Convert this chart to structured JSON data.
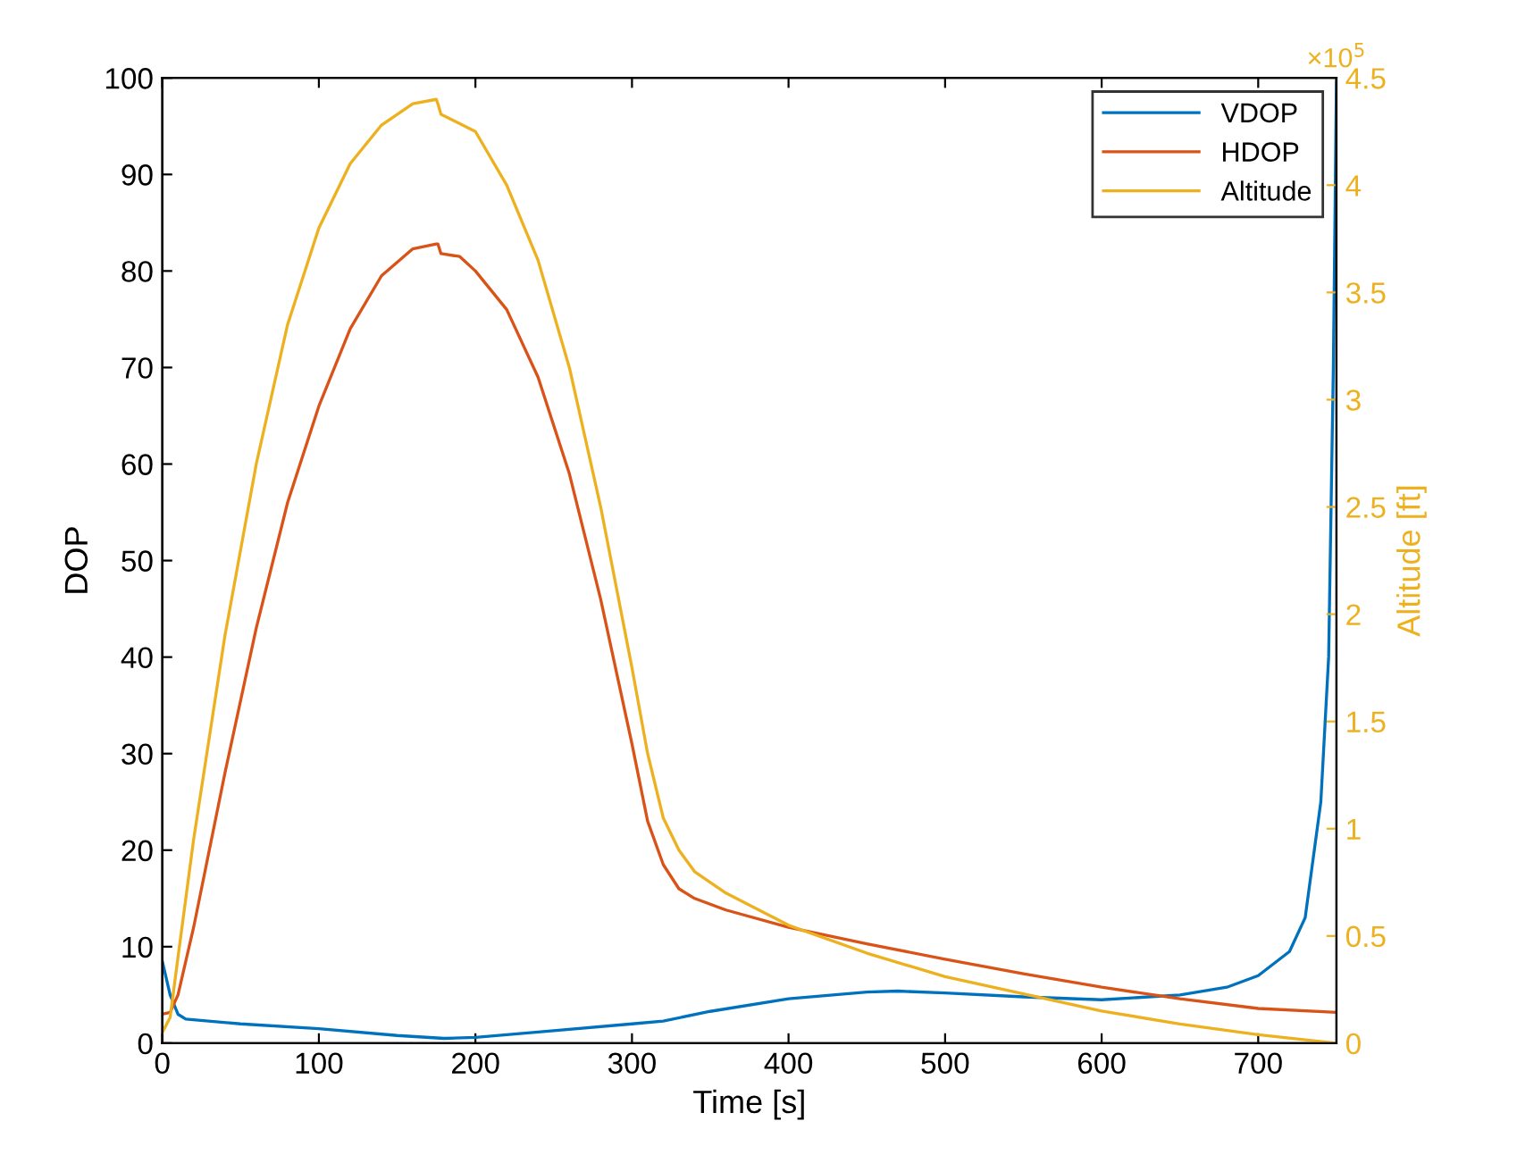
{
  "chart_data": {
    "type": "line",
    "xlabel": "Time [s]",
    "ylabel": "DOP",
    "y2label": "Altitude [ft]",
    "legend": "top right",
    "grid": false,
    "xlim": [
      0,
      750
    ],
    "xticks": [
      0,
      100,
      200,
      300,
      400,
      500,
      600,
      700
    ],
    "ylim": [
      0,
      100
    ],
    "yticks": [
      0,
      10,
      20,
      30,
      40,
      50,
      60,
      70,
      80,
      90,
      100
    ],
    "y2lim": [
      0,
      4.5
    ],
    "y2ticks": [
      0,
      0.5,
      1,
      1.5,
      2,
      2.5,
      3,
      3.5,
      4,
      4.5
    ],
    "annotations": [
      "×10$^{5}$"
    ],
    "series": [
      {
        "name": "VDOP",
        "color": "#0072bd",
        "x": [
          0,
          5,
          10,
          15,
          50,
          100,
          150,
          180,
          200,
          250,
          300,
          320,
          350,
          400,
          450,
          470,
          500,
          550,
          600,
          650,
          680,
          700,
          720,
          730,
          740,
          745,
          748,
          750
        ],
        "values": [
          8.5,
          5,
          3,
          2.5,
          2,
          1.5,
          0.8,
          0.5,
          0.6,
          1.3,
          2,
          2.3,
          3.3,
          4.6,
          5.3,
          5.4,
          5.2,
          4.8,
          4.5,
          5,
          5.8,
          7,
          9.5,
          13,
          25,
          40,
          70,
          100
        ]
      },
      {
        "name": "HDOP",
        "color": "#d95319",
        "x": [
          0,
          5,
          10,
          20,
          40,
          60,
          80,
          100,
          120,
          140,
          160,
          175,
          176,
          178,
          190,
          200,
          220,
          240,
          260,
          280,
          300,
          310,
          320,
          330,
          340,
          360,
          400,
          450,
          500,
          550,
          600,
          650,
          700,
          750
        ],
        "values": [
          3,
          3.2,
          5,
          12,
          28,
          43,
          56,
          66,
          74,
          79.5,
          82.3,
          82.8,
          82.8,
          81.8,
          81.5,
          80,
          76,
          69,
          59,
          46,
          31,
          23,
          18.5,
          16,
          15,
          13.8,
          12,
          10.3,
          8.7,
          7.2,
          5.8,
          4.6,
          3.6,
          3.2
        ]
      },
      {
        "name": "Altitude",
        "color": "#edb120",
        "axis": "y2",
        "x": [
          0,
          5,
          10,
          20,
          40,
          60,
          80,
          100,
          120,
          140,
          160,
          175,
          176,
          178,
          200,
          220,
          240,
          260,
          280,
          300,
          310,
          320,
          330,
          340,
          360,
          400,
          450,
          500,
          550,
          600,
          650,
          700,
          750
        ],
        "values": [
          0.05,
          0.12,
          0.4,
          0.95,
          1.9,
          2.7,
          3.35,
          3.8,
          4.1,
          4.28,
          4.38,
          4.4,
          4.38,
          4.33,
          4.25,
          4.0,
          3.65,
          3.15,
          2.5,
          1.75,
          1.35,
          1.05,
          0.9,
          0.8,
          0.7,
          0.55,
          0.42,
          0.31,
          0.23,
          0.15,
          0.09,
          0.04,
          0
        ]
      }
    ]
  }
}
